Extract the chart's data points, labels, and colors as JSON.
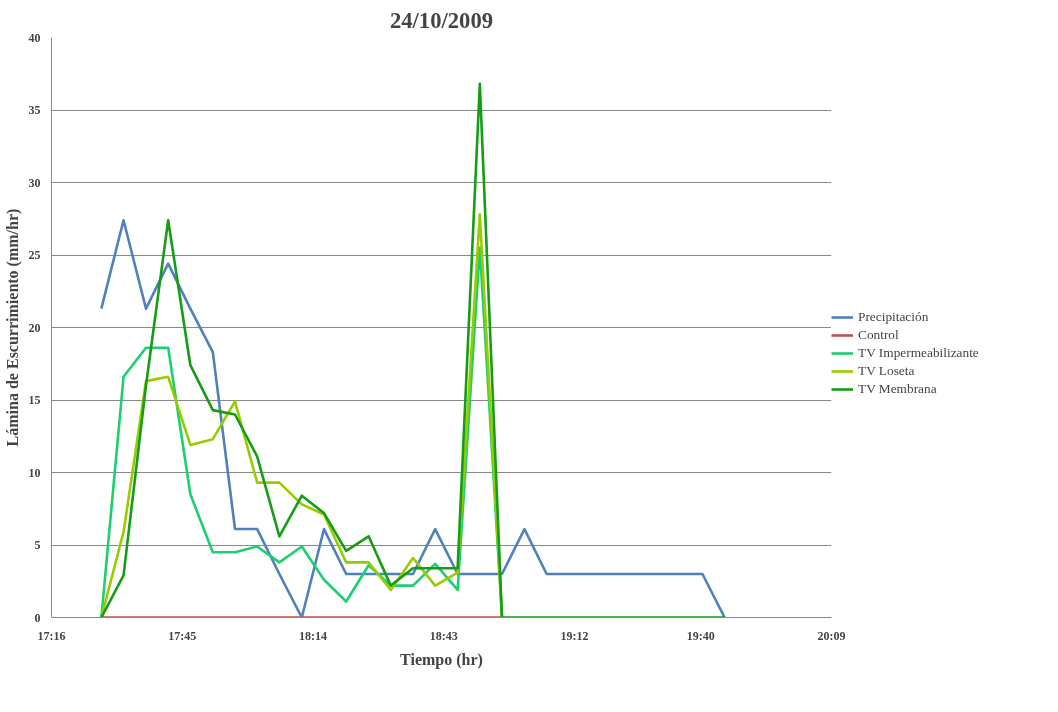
{
  "chart_data": {
    "type": "line",
    "title": "24/10/2009",
    "xlabel": "Tiempo (hr)",
    "ylabel": "Lámina de Escurrimiento (mm/hr)",
    "x": [
      17.451,
      17.533,
      17.616,
      17.698,
      17.78,
      17.863,
      17.945,
      18.027,
      18.109,
      18.192,
      18.274,
      18.356,
      18.439,
      18.521,
      18.603,
      18.685,
      18.768,
      18.85,
      18.932,
      19.015,
      19.097,
      19.179,
      19.261,
      19.344,
      19.426,
      19.508,
      19.59,
      19.673,
      19.755
    ],
    "series": [
      {
        "name": "Precipitación",
        "color": "#4f81bd",
        "values": [
          21.3,
          27.4,
          21.3,
          24.4,
          21.3,
          18.3,
          6.1,
          6.1,
          3.0,
          0,
          6.1,
          3.0,
          3.0,
          3.0,
          3.0,
          6.1,
          3.0,
          3.0,
          3.0,
          6.1,
          3.0,
          3.0,
          3.0,
          3.0,
          3.0,
          3.0,
          3.0,
          3.0,
          0
        ]
      },
      {
        "name": "Control",
        "color": "#c0504d",
        "values": [
          0,
          0,
          0,
          0,
          0,
          0,
          0,
          0,
          0,
          0,
          0,
          0,
          0,
          0,
          0,
          0,
          0,
          0,
          0,
          null,
          null,
          null,
          null,
          null,
          null,
          null,
          null,
          null,
          null
        ]
      },
      {
        "name": "TV Impermeabilizante",
        "color": "#1ccf6f",
        "values": [
          0,
          16.6,
          18.6,
          18.6,
          8.5,
          4.5,
          4.5,
          4.9,
          3.8,
          4.9,
          2.6,
          1.1,
          3.6,
          2.2,
          2.2,
          3.7,
          1.9,
          25.5,
          0,
          null,
          null,
          null,
          null,
          null,
          null,
          null,
          null,
          null,
          null
        ]
      },
      {
        "name": "TV Loseta",
        "color": "#99cc00",
        "values": [
          0,
          5.9,
          16.3,
          16.6,
          11.9,
          12.3,
          14.9,
          9.3,
          9.3,
          7.8,
          7.1,
          3.8,
          3.8,
          1.9,
          4.1,
          2.2,
          3.1,
          27.8,
          0,
          null,
          null,
          null,
          null,
          null,
          null,
          null,
          null,
          null,
          null
        ]
      },
      {
        "name": "TV Membrana",
        "color": "#169c16",
        "values": [
          0,
          2.9,
          16.0,
          27.4,
          17.4,
          14.3,
          14.0,
          11.1,
          5.6,
          8.4,
          7.2,
          4.6,
          5.6,
          2.2,
          3.4,
          3.4,
          3.4,
          36.8,
          0,
          0,
          0,
          0,
          0,
          0,
          0,
          0,
          0,
          0,
          0
        ]
      }
    ],
    "xlim": [
      17.2667,
      20.15
    ],
    "xticks": [
      {
        "value": 17.2667,
        "label": "17:16"
      },
      {
        "value": 17.75,
        "label": "17:45"
      },
      {
        "value": 18.2333,
        "label": "18:14"
      },
      {
        "value": 18.7167,
        "label": "18:43"
      },
      {
        "value": 19.2,
        "label": "19:12"
      },
      {
        "value": 19.6667,
        "label": "19:40"
      },
      {
        "value": 20.15,
        "label": "20:09"
      }
    ],
    "ylim": [
      0,
      40
    ],
    "yticks": [
      0,
      5,
      10,
      15,
      20,
      25,
      30,
      35,
      40
    ],
    "grid": "y",
    "legend": "right",
    "marker": "none",
    "line_style": "solid"
  }
}
